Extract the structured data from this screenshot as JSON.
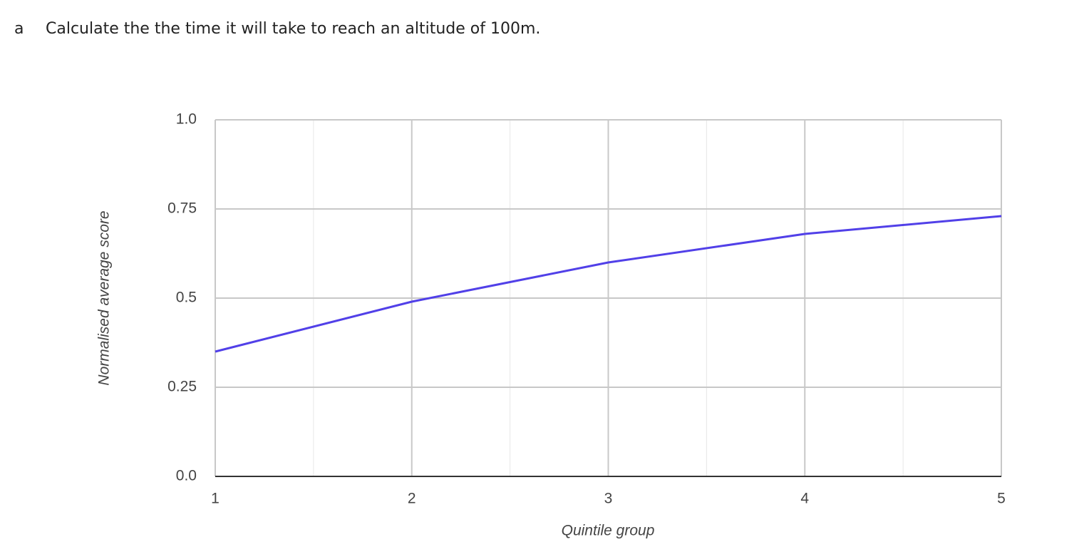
{
  "question": {
    "label": "a",
    "text": "Calculate the the time it will take to reach an altitude of 100m."
  },
  "chart_data": {
    "type": "line",
    "x": [
      1,
      2,
      3,
      4,
      5
    ],
    "series": [
      {
        "color": "#5140e8",
        "values": [
          0.35,
          0.49,
          0.6,
          0.68,
          0.73
        ]
      }
    ],
    "xlim": [
      1,
      5
    ],
    "xticks": [
      1,
      2,
      3,
      4,
      5
    ],
    "ylim": [
      0,
      1
    ],
    "yticks": [
      {
        "value": 0,
        "label": "0.0"
      },
      0.25,
      0.5,
      0.75,
      {
        "value": 1,
        "label": "1.0"
      }
    ],
    "xlabel": "Quintile group",
    "ylabel": "Normalised average score",
    "grid": true
  }
}
